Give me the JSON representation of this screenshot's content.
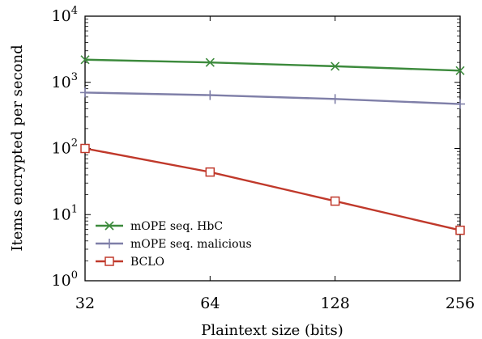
{
  "chart_data": {
    "type": "line",
    "xlabel": "Plaintext size (bits)",
    "ylabel": "Items encrypted per second",
    "x_scale": "log2",
    "y_scale": "log10",
    "xlim": [
      32,
      256
    ],
    "ylim": [
      1,
      10000
    ],
    "x": [
      32,
      64,
      128,
      256
    ],
    "x_tick_labels": [
      "32",
      "64",
      "128",
      "256"
    ],
    "y_ticks": [
      {
        "base": "10",
        "exp": "0",
        "value": 1
      },
      {
        "base": "10",
        "exp": "1",
        "value": 10
      },
      {
        "base": "10",
        "exp": "2",
        "value": 100
      },
      {
        "base": "10",
        "exp": "3",
        "value": 1000
      },
      {
        "base": "10",
        "exp": "4",
        "value": 10000
      }
    ],
    "grid": false,
    "legend_position": "bottom-left",
    "series": [
      {
        "name": "mOPE seq. HbC",
        "values": [
          2200,
          2000,
          1750,
          1500
        ],
        "color": "#3c8a3c",
        "marker": "x"
      },
      {
        "name": "mOPE seq. malicious",
        "values": [
          700,
          640,
          560,
          470
        ],
        "color": "#7f7fa8",
        "marker": "plus"
      },
      {
        "name": "BCLO",
        "values": [
          100,
          44,
          16,
          5.8
        ],
        "color": "#c0392b",
        "marker": "square"
      }
    ]
  }
}
